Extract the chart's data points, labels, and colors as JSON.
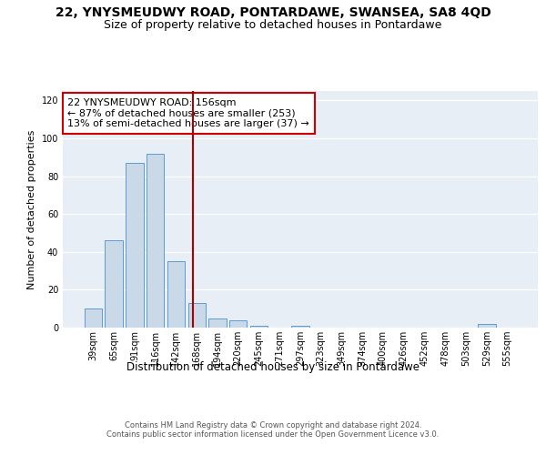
{
  "title_line1": "22, YNYSMEUDWY ROAD, PONTARDAWE, SWANSEA, SA8 4QD",
  "title_line2": "Size of property relative to detached houses in Pontardawe",
  "xlabel": "Distribution of detached houses by size in Pontardawe",
  "ylabel": "Number of detached properties",
  "categories": [
    "39sqm",
    "65sqm",
    "91sqm",
    "116sqm",
    "142sqm",
    "168sqm",
    "194sqm",
    "220sqm",
    "245sqm",
    "271sqm",
    "297sqm",
    "323sqm",
    "349sqm",
    "374sqm",
    "400sqm",
    "426sqm",
    "452sqm",
    "478sqm",
    "503sqm",
    "529sqm",
    "555sqm"
  ],
  "values": [
    10,
    46,
    87,
    92,
    35,
    13,
    5,
    4,
    1,
    0,
    1,
    0,
    0,
    0,
    0,
    0,
    0,
    0,
    0,
    2,
    0
  ],
  "bar_color": "#c9d9e8",
  "bar_edge_color": "#5b9bd5",
  "vline_color": "#aa0000",
  "annotation_text": "22 YNYSMEUDWY ROAD: 156sqm\n← 87% of detached houses are smaller (253)\n13% of semi-detached houses are larger (37) →",
  "annotation_box_color": "white",
  "annotation_box_edge_color": "#cc0000",
  "ylim": [
    0,
    125
  ],
  "yticks": [
    0,
    20,
    40,
    60,
    80,
    100,
    120
  ],
  "background_color": "#e8eef5",
  "footer_text": "Contains HM Land Registry data © Crown copyright and database right 2024.\nContains public sector information licensed under the Open Government Licence v3.0.",
  "title_fontsize": 10,
  "subtitle_fontsize": 9,
  "axis_label_fontsize": 8.5,
  "tick_fontsize": 7,
  "annotation_fontsize": 8,
  "ylabel_fontsize": 8
}
